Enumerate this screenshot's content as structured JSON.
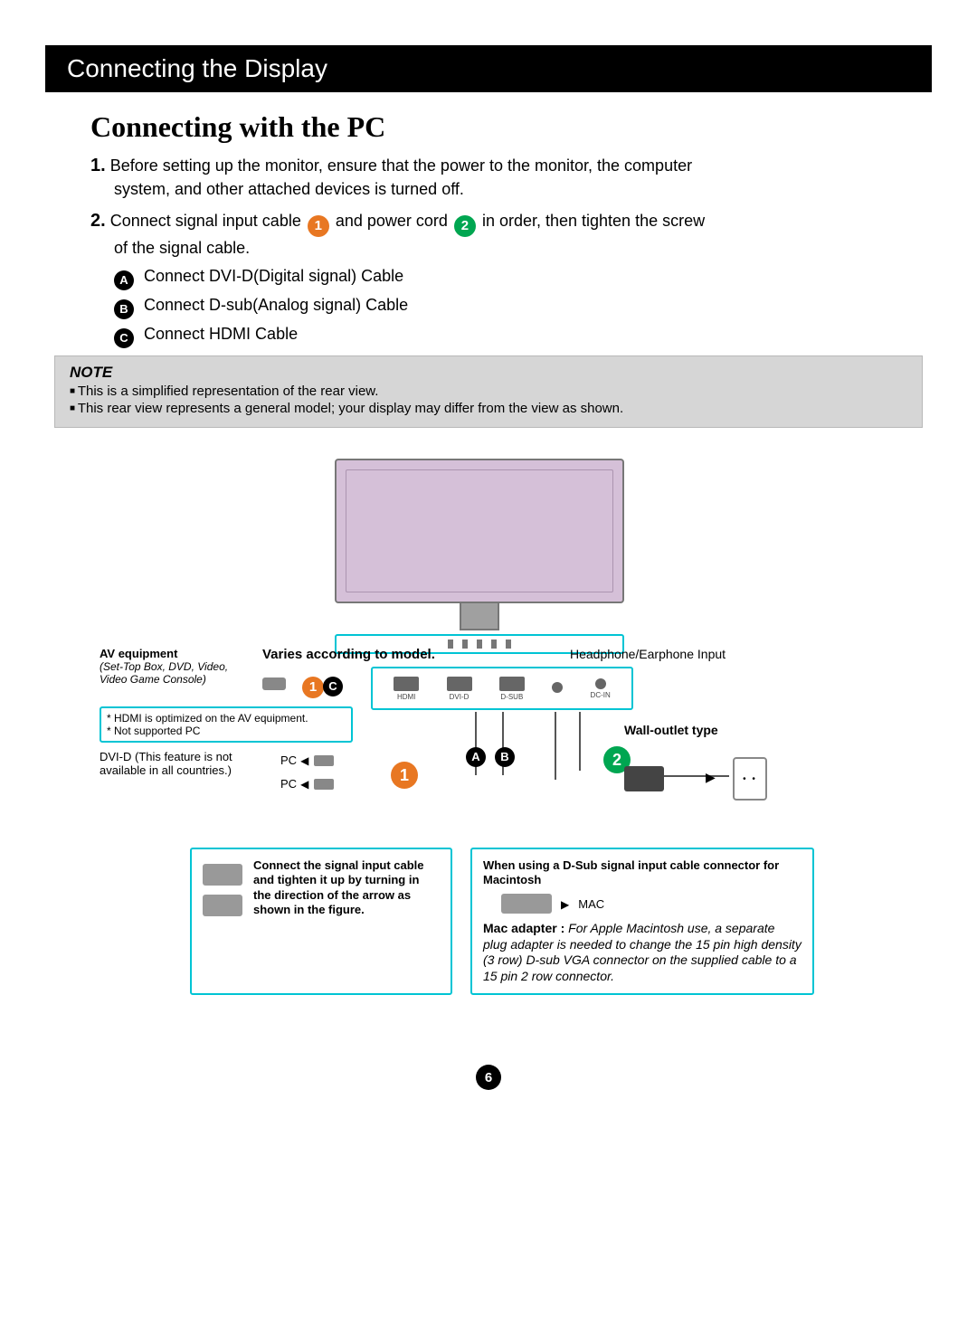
{
  "colors": {
    "header_bg": "#000000",
    "header_fg": "#ffffff",
    "accent_orange": "#e87722",
    "accent_green": "#00a651",
    "box_border": "#00c4d4",
    "note_bg": "#d6d6d6",
    "monitor_tint": "#d5c0d8"
  },
  "typography": {
    "body_font": "Arial, Helvetica, sans-serif",
    "title_font": "Georgia, Times New Roman, serif",
    "header_size_pt": 21,
    "title_size_pt": 24,
    "body_size_pt": 13
  },
  "page_number": "6",
  "header": {
    "title": "Connecting the Display"
  },
  "section": {
    "title": "Connecting with the PC",
    "steps": {
      "s1": {
        "num": "1.",
        "text_a": "Before setting up the monitor, ensure that the power to the monitor, the computer",
        "text_b": "system, and other attached devices is turned off."
      },
      "s2": {
        "num": "2.",
        "pre": "Connect signal input cable ",
        "mark1": "1",
        "mid": " and power cord ",
        "mark2": "2",
        "post": " in order, then tighten the screw",
        "tail": "of the signal cable."
      }
    },
    "sub": {
      "a": {
        "letter": "A",
        "text": "Connect DVI-D(Digital signal) Cable"
      },
      "b": {
        "letter": "B",
        "text": "Connect D-sub(Analog signal) Cable"
      },
      "c": {
        "letter": "C",
        "text": "Connect HDMI Cable"
      }
    }
  },
  "note": {
    "title": "NOTE",
    "items": [
      "This is a simplified representation of the rear view.",
      "This rear view represents a general model; your display may differ from the view as shown."
    ]
  },
  "diagram": {
    "varies_label": "Varies according to model.",
    "headphone_label": "Headphone/Earphone Input",
    "wall_label": "Wall-outlet type",
    "av": {
      "title": "AV equipment",
      "subtitle": "(Set-Top Box, DVD, Video, Video Game Console)"
    },
    "hdmi_note_1": "* HDMI is optimized on the AV equipment.",
    "hdmi_note_2": "* Not supported PC",
    "dvid_note": "DVI-D (This feature is not available in all countries.)",
    "pc_label": "PC",
    "ports": {
      "hdmi": "HDMI",
      "dvid": "DVI-D",
      "dsub": "D-SUB",
      "hp": "",
      "dcin": "DC-IN"
    },
    "marks": {
      "one": "1",
      "two": "2",
      "A": "A",
      "B": "B",
      "C": "C"
    },
    "mac_label": "MAC"
  },
  "info": {
    "left": {
      "text": "Connect the signal input cable and tighten it up by turning in the direction of the arrow as shown in the figure."
    },
    "right": {
      "head": "When using a D-Sub signal input cable connector for Macintosh",
      "desc_bold": "Mac adapter : ",
      "desc": "For Apple Macintosh use, a  separate plug adapter is needed to change the 15 pin high density (3 row) D-sub VGA connector on the supplied cable to a 15 pin  2 row connector."
    }
  }
}
